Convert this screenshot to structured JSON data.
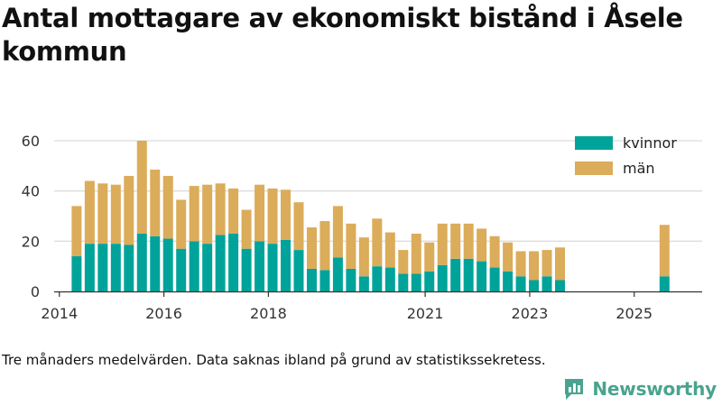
{
  "chart_data": {
    "type": "bar",
    "stacked": true,
    "title": "Antal mottagare av ekonomiskt bistånd i Åsele kommun",
    "xlabel": "",
    "ylabel": "",
    "ylim": [
      0,
      60
    ],
    "yticks": [
      0,
      20,
      40,
      60
    ],
    "xlim": [
      2013.9,
      2026.3
    ],
    "xticks": [
      2014,
      2016,
      2018,
      2021,
      2023,
      2025
    ],
    "grid": true,
    "legend_position": "top-right",
    "x": [
      2014.33,
      2014.58,
      2014.83,
      2015.08,
      2015.33,
      2015.58,
      2015.83,
      2016.08,
      2016.33,
      2016.58,
      2016.83,
      2017.08,
      2017.33,
      2017.58,
      2017.83,
      2018.08,
      2018.33,
      2018.58,
      2018.83,
      2019.08,
      2019.33,
      2019.58,
      2019.83,
      2020.08,
      2020.33,
      2020.58,
      2020.83,
      2021.08,
      2021.33,
      2021.58,
      2021.83,
      2022.08,
      2022.33,
      2022.58,
      2022.83,
      2023.08,
      2023.33,
      2023.58,
      2025.58
    ],
    "series": [
      {
        "name": "kvinnor",
        "color": "#00a39a",
        "values": [
          14,
          19,
          19,
          19,
          18.5,
          23,
          22,
          21,
          17,
          20,
          19,
          22.5,
          23,
          17,
          20,
          19,
          20.5,
          16.5,
          9,
          8.5,
          13.5,
          9,
          6,
          10,
          9.5,
          7,
          7,
          8,
          10.5,
          13,
          13,
          12,
          9.5,
          8,
          6,
          4.5,
          6,
          4.5,
          6
        ]
      },
      {
        "name": "män",
        "color": "#dbac5a",
        "values": [
          20,
          25,
          24,
          23.5,
          27.5,
          37,
          26.5,
          25,
          19.5,
          22,
          23.5,
          20.5,
          18,
          15.5,
          22.5,
          22,
          20,
          19,
          16.5,
          19.5,
          20.5,
          18,
          15.5,
          19,
          14,
          9.5,
          16,
          11.5,
          16.5,
          14,
          14,
          13,
          12.5,
          11.5,
          10,
          11.5,
          10.5,
          13,
          20.5
        ]
      }
    ]
  },
  "footnote": "Tre månaders medelvärden. Data saknas ibland på grund av statistikssekretess.",
  "brand": {
    "name": "Newsworthy",
    "icon": "newsworthy-logo-icon",
    "color": "#4aa38e"
  },
  "colors": {
    "grid": "#dddddd",
    "axis": "#333333",
    "tick_text": "#333333"
  }
}
